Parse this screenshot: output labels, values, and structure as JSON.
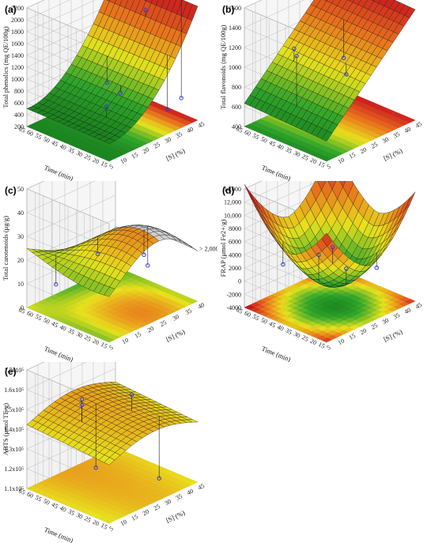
{
  "chart_data": [
    {
      "panel": "(a)",
      "type": "surface3d",
      "xlabel": "[S] (%)",
      "ylabel": "Time (min)",
      "zlabel": "Total phenolics (mg QE/100g)",
      "x_ticks": [
        "5",
        "10",
        "15",
        "20",
        "25",
        "30",
        "35",
        "40",
        "45"
      ],
      "y_ticks": [
        "65",
        "60",
        "55",
        "50",
        "45",
        "40",
        "35",
        "30",
        "25",
        "20",
        "15"
      ],
      "z_ticks": [
        "200",
        "400",
        "600",
        "800",
        "1000",
        "1200",
        "1400",
        "1600",
        "1800",
        "2000",
        "2200"
      ],
      "zlim": [
        200,
        2200
      ],
      "surface": {
        "shape": "quadratic-in-S",
        "z_low": 420,
        "z_min": 300,
        "z_high": 2150
      },
      "points": [
        {
          "x": 40,
          "y": 40,
          "z": 1900
        },
        {
          "x": 15,
          "y": 30,
          "z": 700
        },
        {
          "x": 25,
          "y": 35,
          "z": 700
        },
        {
          "x": 30,
          "y": 50,
          "z": 600
        },
        {
          "x": 35,
          "y": 20,
          "z": 400
        },
        {
          "x": 45,
          "y": 25,
          "z": 350
        }
      ]
    },
    {
      "panel": "(b)",
      "type": "surface3d",
      "xlabel": "[S] (%)",
      "ylabel": "Time (min)",
      "zlabel": "Total flavonoids (mg QE/100g)",
      "x_ticks": [
        "5",
        "10",
        "15",
        "20",
        "25",
        "30",
        "35",
        "40",
        "45"
      ],
      "y_ticks": [
        "65",
        "60",
        "55",
        "50",
        "45",
        "40",
        "35",
        "30",
        "25",
        "20",
        "15"
      ],
      "z_ticks": [
        "400",
        "600",
        "800",
        "1000",
        "1200",
        "1400",
        "1600"
      ],
      "zlim": [
        400,
        1600
      ],
      "surface": {
        "shape": "linear-in-S",
        "z_low": 600,
        "z_high": 1600
      },
      "points": [
        {
          "x": 10,
          "y": 40,
          "z": 1250
        },
        {
          "x": 20,
          "y": 55,
          "z": 1100
        },
        {
          "x": 25,
          "y": 30,
          "z": 950
        },
        {
          "x": 35,
          "y": 45,
          "z": 900
        }
      ]
    },
    {
      "panel": "(c)",
      "type": "surface3d",
      "xlabel": "[S] (%)",
      "ylabel": "Time (min)",
      "zlabel": "Total carotenoids (μg/g)",
      "x_ticks": [
        "5",
        "10",
        "15",
        "20",
        "25",
        "30",
        "35",
        "40"
      ],
      "y_ticks": [
        "65",
        "60",
        "55",
        "50",
        "45",
        "40",
        "35",
        "30",
        "25",
        "20",
        "15"
      ],
      "z_ticks": [
        "0",
        "10",
        "20",
        "30",
        "40",
        "50"
      ],
      "zlim": [
        0,
        50
      ],
      "cut_label": "> 2,000",
      "surface": {
        "shape": "saddle"
      },
      "points": [
        {
          "x": 20,
          "y": 45,
          "z": 20
        },
        {
          "x": 30,
          "y": 30,
          "z": 14
        },
        {
          "x": 35,
          "y": 40,
          "z": 13
        },
        {
          "x": 10,
          "y": 55,
          "z": 8
        }
      ]
    },
    {
      "panel": "(d)",
      "type": "surface3d",
      "xlabel": "[S] (%)",
      "ylabel": "Time (min)",
      "zlabel": "FRAP (μmol Fe2+/g)",
      "x_ticks": [
        "5",
        "10",
        "15",
        "20",
        "25",
        "30",
        "35",
        "40",
        "45"
      ],
      "y_ticks": [
        "65",
        "60",
        "55",
        "50",
        "45",
        "40",
        "35",
        "30",
        "25",
        "20",
        "15"
      ],
      "z_ticks": [
        "-4000",
        "-2000",
        "0",
        "2000",
        "4000",
        "6000",
        "8000",
        "10,000",
        "12,000",
        "14,000"
      ],
      "zlim": [
        -4000,
        14000
      ],
      "surface": {
        "shape": "bowl"
      },
      "points": [
        {
          "x": 20,
          "y": 40,
          "z": 4000
        },
        {
          "x": 30,
          "y": 45,
          "z": 3000
        },
        {
          "x": 25,
          "y": 30,
          "z": 2000
        },
        {
          "x": 15,
          "y": 55,
          "z": 1500
        },
        {
          "x": 35,
          "y": 25,
          "z": 1000
        }
      ]
    },
    {
      "panel": "(e)",
      "type": "surface3d",
      "xlabel": "[S] (%)",
      "ylabel": "Time (min)",
      "zlabel": "ABTS (μmol TE/g)",
      "x_ticks": [
        "5",
        "10",
        "15",
        "20",
        "25",
        "30",
        "35",
        "40",
        "45"
      ],
      "y_ticks": [
        "65",
        "60",
        "55",
        "50",
        "45",
        "40",
        "35",
        "30",
        "25",
        "20",
        "15"
      ],
      "z_ticks": [
        "1.1x10⁵",
        "1.2x10⁵",
        "1.3x10⁵",
        "1.4x10⁵",
        "1.5x10⁵",
        "1.6x10⁵",
        "1.7x10⁵"
      ],
      "zlim": [
        110000,
        170000
      ],
      "surface": {
        "shape": "gentle-ridge"
      },
      "points": [
        {
          "x": 15,
          "y": 45,
          "z": 158000
        },
        {
          "x": 15,
          "y": 45,
          "z": 155000
        },
        {
          "x": 30,
          "y": 35,
          "z": 156000
        },
        {
          "x": 25,
          "y": 50,
          "z": 112000
        },
        {
          "x": 35,
          "y": 25,
          "z": 110000
        }
      ]
    }
  ],
  "colors": {
    "red": "#c8141e",
    "orange": "#e8711c",
    "yellow": "#e8e21c",
    "green": "#2fa52a",
    "dark_green": "#0d6e17",
    "grid": "#bbbbbb",
    "point": "#2f3bd6"
  }
}
